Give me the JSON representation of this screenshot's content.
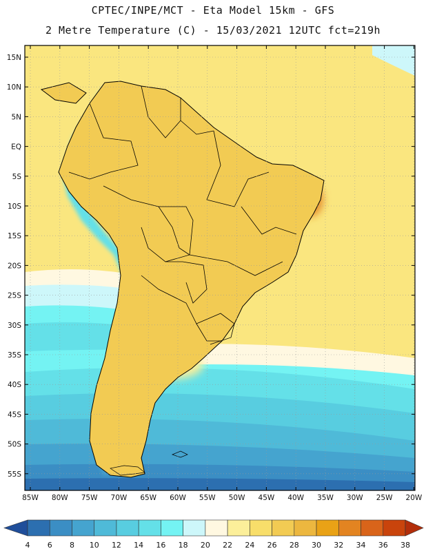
{
  "header": {
    "line1": "CPTEC/INPE/MCT -  Eta Model 15km - GFS",
    "line2": "2 Metre Temperature (C) - 15/03/2021 12UTC fct=219h"
  },
  "map": {
    "lat_labels": [
      "15N",
      "10N",
      "5N",
      "EQ",
      "5S",
      "10S",
      "15S",
      "20S",
      "25S",
      "30S",
      "35S",
      "40S",
      "45S",
      "50S",
      "55S"
    ],
    "lon_labels": [
      "85W",
      "80W",
      "75W",
      "70W",
      "65W",
      "60W",
      "55W",
      "50W",
      "45W",
      "40W",
      "35W",
      "30W",
      "25W",
      "20W"
    ]
  },
  "colorbar": {
    "values": [
      "4",
      "6",
      "8",
      "10",
      "12",
      "14",
      "16",
      "18",
      "20",
      "22",
      "24",
      "26",
      "28",
      "30",
      "32",
      "34",
      "36",
      "38"
    ],
    "colors": [
      "#1f4e9a",
      "#2c6fb0",
      "#3b8ec4",
      "#45a4cf",
      "#4fbad8",
      "#58cde0",
      "#64e0e8",
      "#74f3f3",
      "#cdf7fa",
      "#fff8e1",
      "#fcef9a",
      "#f8de6a",
      "#f2cb53",
      "#ecb73f",
      "#e9a216",
      "#e38421",
      "#d9641a",
      "#c9440c",
      "#b32e0a"
    ]
  }
}
